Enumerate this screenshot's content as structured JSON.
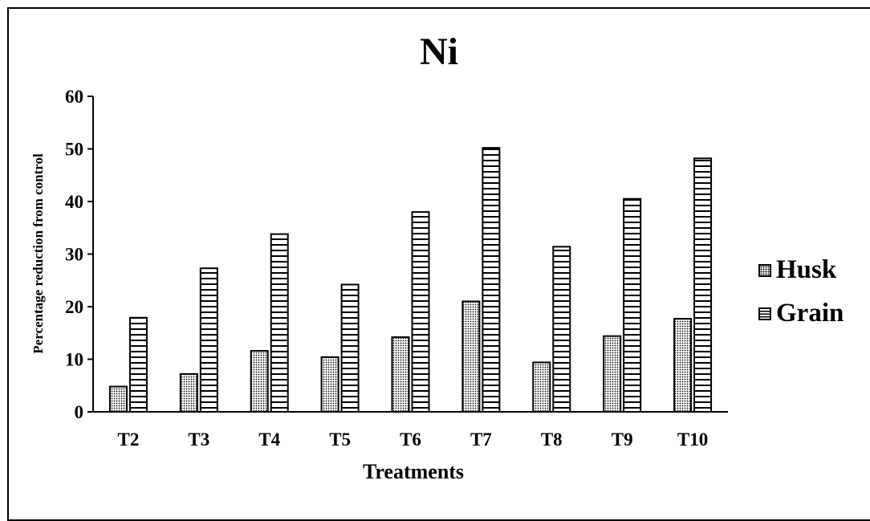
{
  "chart_data": {
    "type": "bar",
    "title": "Ni",
    "xlabel": "Treatments",
    "ylabel": "Percentage reduction from control",
    "categories": [
      "T2",
      "T3",
      "T4",
      "T5",
      "T6",
      "T7",
      "T8",
      "T9",
      "T10"
    ],
    "ylim": [
      0,
      60
    ],
    "yticks": [
      0,
      10,
      20,
      30,
      40,
      50,
      60
    ],
    "grid": false,
    "legend_position": "right",
    "series": [
      {
        "name": "Husk",
        "pattern": "dotted",
        "values": [
          4.8,
          7.2,
          11.6,
          10.4,
          14.2,
          21.0,
          9.4,
          14.4,
          17.7
        ]
      },
      {
        "name": "Grain",
        "pattern": "horizontal-stripes",
        "values": [
          17.9,
          27.3,
          33.8,
          24.2,
          38.0,
          50.2,
          31.4,
          40.5,
          48.2
        ]
      }
    ]
  }
}
